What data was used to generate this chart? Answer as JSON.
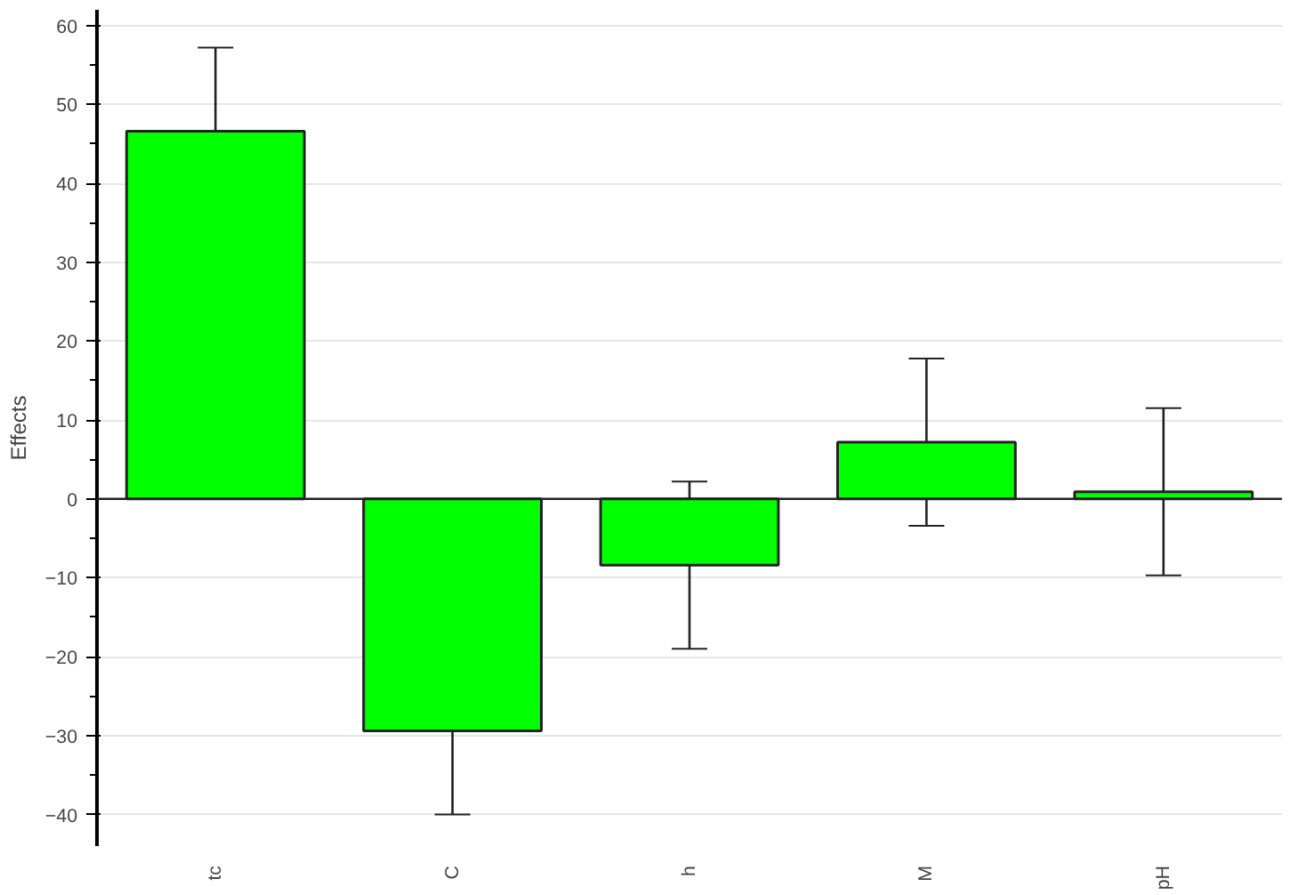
{
  "chart_data": {
    "type": "bar",
    "ylabel": "Effects",
    "categories": [
      "tc",
      "C",
      "h",
      "M",
      "pH"
    ],
    "values": [
      46.6,
      -29.4,
      -8.4,
      7.2,
      0.9
    ],
    "errors": [
      10.6,
      10.6,
      10.6,
      10.6,
      10.6
    ],
    "color": "#00ff00",
    "ylim": [
      -44,
      62
    ],
    "yticks": [
      -40,
      -30,
      -20,
      -10,
      0,
      10,
      20,
      30,
      40,
      50,
      60
    ],
    "grid": "y"
  }
}
